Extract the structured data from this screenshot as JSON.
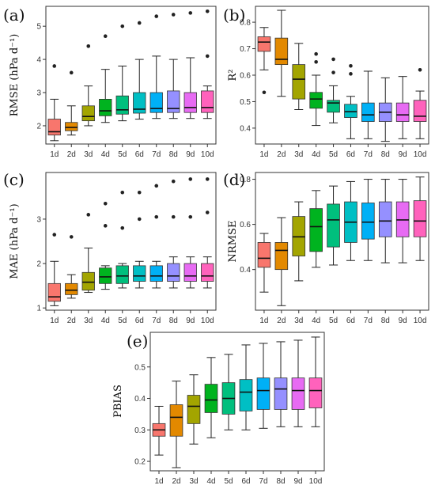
{
  "categories": [
    "1d",
    "2d",
    "3d",
    "4d",
    "5d",
    "6d",
    "7d",
    "8d",
    "9d",
    "10d"
  ],
  "colors": [
    "#f8766d",
    "#e38900",
    "#a3a500",
    "#00b31f",
    "#00bf7d",
    "#00bfc4",
    "#00b0f6",
    "#9590ff",
    "#e76bf3",
    "#ff62bc"
  ],
  "chart_data": [
    {
      "type": "box",
      "panel": "(a)",
      "ylabel": "RMSE (hPa d⁻¹)",
      "ylim": [
        1.45,
        5.6
      ],
      "yticks": [
        2,
        3,
        4,
        5
      ],
      "boxes": [
        {
          "min": 1.55,
          "q1": 1.72,
          "median": 1.82,
          "q3": 2.2,
          "max": 2.8,
          "outliers": [
            3.8
          ]
        },
        {
          "min": 1.72,
          "q1": 1.85,
          "median": 1.95,
          "q3": 2.1,
          "max": 2.6,
          "outliers": [
            3.6
          ]
        },
        {
          "min": 2.0,
          "q1": 2.15,
          "median": 2.28,
          "q3": 2.6,
          "max": 3.2,
          "outliers": [
            4.4
          ]
        },
        {
          "min": 2.1,
          "q1": 2.3,
          "median": 2.45,
          "q3": 2.8,
          "max": 3.7,
          "outliers": [
            4.7
          ]
        },
        {
          "min": 2.15,
          "q1": 2.35,
          "median": 2.48,
          "q3": 2.9,
          "max": 3.8,
          "outliers": [
            5.0
          ]
        },
        {
          "min": 2.2,
          "q1": 2.38,
          "median": 2.5,
          "q3": 3.0,
          "max": 4.0,
          "outliers": [
            5.1
          ]
        },
        {
          "min": 2.22,
          "q1": 2.4,
          "median": 2.52,
          "q3": 3.0,
          "max": 4.1,
          "outliers": [
            5.3
          ]
        },
        {
          "min": 2.22,
          "q1": 2.4,
          "median": 2.52,
          "q3": 3.05,
          "max": 4.0,
          "outliers": [
            5.35
          ]
        },
        {
          "min": 2.22,
          "q1": 2.4,
          "median": 2.55,
          "q3": 3.0,
          "max": 4.05,
          "outliers": [
            5.4
          ]
        },
        {
          "min": 2.22,
          "q1": 2.4,
          "median": 2.55,
          "q3": 3.05,
          "max": 3.2,
          "outliers": [
            4.1,
            5.45
          ]
        }
      ]
    },
    {
      "type": "box",
      "panel": "(b)",
      "ylabel": "R²",
      "ylim": [
        0.34,
        0.86
      ],
      "yticks": [
        0.4,
        0.5,
        0.6,
        0.7,
        0.8
      ],
      "boxes": [
        {
          "min": 0.62,
          "q1": 0.69,
          "median": 0.725,
          "q3": 0.745,
          "max": 0.78,
          "outliers": [
            0.535
          ]
        },
        {
          "min": 0.52,
          "q1": 0.64,
          "median": 0.66,
          "q3": 0.74,
          "max": 0.845,
          "outliers": []
        },
        {
          "min": 0.47,
          "q1": 0.51,
          "median": 0.585,
          "q3": 0.64,
          "max": 0.72,
          "outliers": []
        },
        {
          "min": 0.41,
          "q1": 0.475,
          "median": 0.51,
          "q3": 0.535,
          "max": 0.6,
          "outliers": [
            0.65,
            0.68
          ]
        },
        {
          "min": 0.42,
          "q1": 0.46,
          "median": 0.495,
          "q3": 0.505,
          "max": 0.56,
          "outliers": [
            0.61,
            0.66
          ]
        },
        {
          "min": 0.36,
          "q1": 0.44,
          "median": 0.462,
          "q3": 0.49,
          "max": 0.52,
          "outliers": [
            0.605,
            0.635
          ]
        },
        {
          "min": 0.36,
          "q1": 0.425,
          "median": 0.45,
          "q3": 0.495,
          "max": 0.615,
          "outliers": []
        },
        {
          "min": 0.35,
          "q1": 0.425,
          "median": 0.46,
          "q3": 0.495,
          "max": 0.59,
          "outliers": []
        },
        {
          "min": 0.36,
          "q1": 0.425,
          "median": 0.45,
          "q3": 0.495,
          "max": 0.595,
          "outliers": []
        },
        {
          "min": 0.36,
          "q1": 0.425,
          "median": 0.445,
          "q3": 0.505,
          "max": 0.54,
          "outliers": [
            0.62
          ]
        }
      ]
    },
    {
      "type": "box",
      "panel": "(c)",
      "ylabel": "MAE (hPa d⁻¹)",
      "ylim": [
        0.95,
        4.05
      ],
      "yticks": [
        1,
        2,
        3
      ],
      "boxes": [
        {
          "min": 1.05,
          "q1": 1.15,
          "median": 1.25,
          "q3": 1.55,
          "max": 2.05,
          "outliers": [
            2.65
          ]
        },
        {
          "min": 1.22,
          "q1": 1.3,
          "median": 1.4,
          "q3": 1.55,
          "max": 1.75,
          "outliers": [
            2.6
          ]
        },
        {
          "min": 1.35,
          "q1": 1.4,
          "median": 1.58,
          "q3": 1.8,
          "max": 2.35,
          "outliers": [
            3.1
          ]
        },
        {
          "min": 1.42,
          "q1": 1.55,
          "median": 1.7,
          "q3": 1.9,
          "max": 1.95,
          "outliers": [
            2.85,
            3.35
          ]
        },
        {
          "min": 1.45,
          "q1": 1.55,
          "median": 1.72,
          "q3": 1.95,
          "max": 2.0,
          "outliers": [
            2.8,
            3.6
          ]
        },
        {
          "min": 1.45,
          "q1": 1.6,
          "median": 1.72,
          "q3": 1.95,
          "max": 2.05,
          "outliers": [
            3.0,
            3.6
          ]
        },
        {
          "min": 1.45,
          "q1": 1.6,
          "median": 1.72,
          "q3": 1.95,
          "max": 2.05,
          "outliers": [
            3.05,
            3.75
          ]
        },
        {
          "min": 1.45,
          "q1": 1.6,
          "median": 1.72,
          "q3": 2.0,
          "max": 2.15,
          "outliers": [
            3.05,
            3.85
          ]
        },
        {
          "min": 1.45,
          "q1": 1.6,
          "median": 1.72,
          "q3": 2.0,
          "max": 2.15,
          "outliers": [
            3.05,
            3.9
          ]
        },
        {
          "min": 1.45,
          "q1": 1.6,
          "median": 1.72,
          "q3": 2.0,
          "max": 2.15,
          "outliers": [
            3.15,
            3.9
          ]
        }
      ]
    },
    {
      "type": "box",
      "panel": "(d)",
      "ylabel": "NRMSE",
      "ylim": [
        0.22,
        0.83
      ],
      "yticks": [
        0.4,
        0.6,
        0.8
      ],
      "boxes": [
        {
          "min": 0.3,
          "q1": 0.41,
          "median": 0.45,
          "q3": 0.52,
          "max": 0.56,
          "outliers": []
        },
        {
          "min": 0.24,
          "q1": 0.4,
          "median": 0.485,
          "q3": 0.52,
          "max": 0.63,
          "outliers": []
        },
        {
          "min": 0.35,
          "q1": 0.46,
          "median": 0.545,
          "q3": 0.635,
          "max": 0.7,
          "outliers": []
        },
        {
          "min": 0.41,
          "q1": 0.48,
          "median": 0.59,
          "q3": 0.67,
          "max": 0.75,
          "outliers": []
        },
        {
          "min": 0.42,
          "q1": 0.5,
          "median": 0.62,
          "q3": 0.69,
          "max": 0.77,
          "outliers": []
        },
        {
          "min": 0.44,
          "q1": 0.52,
          "median": 0.61,
          "q3": 0.7,
          "max": 0.79,
          "outliers": []
        },
        {
          "min": 0.44,
          "q1": 0.535,
          "median": 0.61,
          "q3": 0.695,
          "max": 0.8,
          "outliers": []
        },
        {
          "min": 0.43,
          "q1": 0.545,
          "median": 0.615,
          "q3": 0.7,
          "max": 0.8,
          "outliers": []
        },
        {
          "min": 0.43,
          "q1": 0.545,
          "median": 0.62,
          "q3": 0.7,
          "max": 0.8,
          "outliers": []
        },
        {
          "min": 0.44,
          "q1": 0.545,
          "median": 0.615,
          "q3": 0.705,
          "max": 0.81,
          "outliers": []
        }
      ]
    },
    {
      "type": "box",
      "panel": "(e)",
      "ylabel": "PBIAS",
      "ylim": [
        0.17,
        0.61
      ],
      "yticks": [
        0.2,
        0.3,
        0.4,
        0.5
      ],
      "boxes": [
        {
          "min": 0.22,
          "q1": 0.28,
          "median": 0.3,
          "q3": 0.32,
          "max": 0.375,
          "outliers": []
        },
        {
          "min": 0.18,
          "q1": 0.28,
          "median": 0.34,
          "q3": 0.38,
          "max": 0.455,
          "outliers": []
        },
        {
          "min": 0.255,
          "q1": 0.32,
          "median": 0.375,
          "q3": 0.41,
          "max": 0.475,
          "outliers": []
        },
        {
          "min": 0.275,
          "q1": 0.355,
          "median": 0.395,
          "q3": 0.445,
          "max": 0.53,
          "outliers": []
        },
        {
          "min": 0.3,
          "q1": 0.35,
          "median": 0.4,
          "q3": 0.45,
          "max": 0.54,
          "outliers": []
        },
        {
          "min": 0.3,
          "q1": 0.36,
          "median": 0.42,
          "q3": 0.46,
          "max": 0.57,
          "outliers": []
        },
        {
          "min": 0.305,
          "q1": 0.365,
          "median": 0.425,
          "q3": 0.465,
          "max": 0.575,
          "outliers": []
        },
        {
          "min": 0.31,
          "q1": 0.365,
          "median": 0.43,
          "q3": 0.465,
          "max": 0.58,
          "outliers": []
        },
        {
          "min": 0.31,
          "q1": 0.365,
          "median": 0.425,
          "q3": 0.465,
          "max": 0.585,
          "outliers": []
        },
        {
          "min": 0.31,
          "q1": 0.37,
          "median": 0.425,
          "q3": 0.465,
          "max": 0.595,
          "outliers": []
        }
      ]
    }
  ]
}
